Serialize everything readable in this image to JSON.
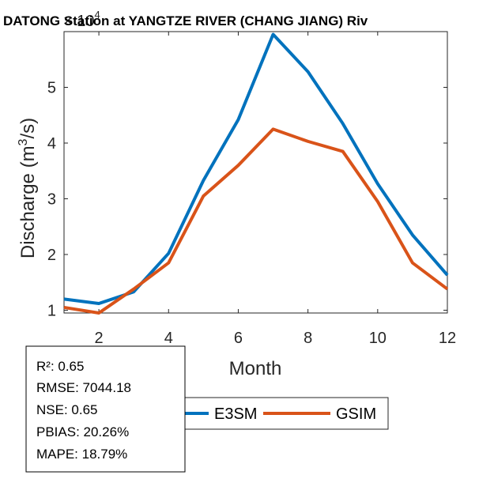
{
  "chart_data": {
    "type": "line",
    "title": "DATONG Station at  YANGTZE RIVER (CHANG JIANG)  Riv",
    "xlabel": "Month",
    "ylabel_main": "Discharge (m",
    "ylabel_sup": "3",
    "ylabel_end": "/s)",
    "y_exponent_prefix": "× 10",
    "y_exponent_power": "4",
    "xlim": [
      1,
      12
    ],
    "ylim": [
      0.95,
      6
    ],
    "x": [
      1,
      2,
      3,
      4,
      5,
      6,
      7,
      8,
      9,
      10,
      11,
      12
    ],
    "xticks": [
      2,
      4,
      6,
      8,
      10,
      12
    ],
    "yticks": [
      1,
      2,
      3,
      4,
      5
    ],
    "series": [
      {
        "name": "E3SM",
        "color": "#0072BD",
        "values": [
          1.2,
          1.12,
          1.33,
          2.02,
          3.33,
          4.42,
          5.95,
          5.28,
          4.35,
          3.27,
          2.35,
          1.63
        ]
      },
      {
        "name": "GSIM",
        "color": "#D95319",
        "values": [
          1.05,
          0.95,
          1.38,
          1.85,
          3.05,
          3.6,
          4.25,
          4.03,
          3.85,
          2.95,
          1.85,
          1.38
        ]
      }
    ]
  },
  "stats": {
    "r2": "R²: 0.65",
    "rmse": "RMSE: 7044.18",
    "nse": "NSE: 0.65",
    "pbias": "PBIAS: 20.26%",
    "mape": "MAPE: 18.79%"
  },
  "legend": {
    "e3sm_label": "E3SM",
    "gsim_label": "GSIM"
  }
}
